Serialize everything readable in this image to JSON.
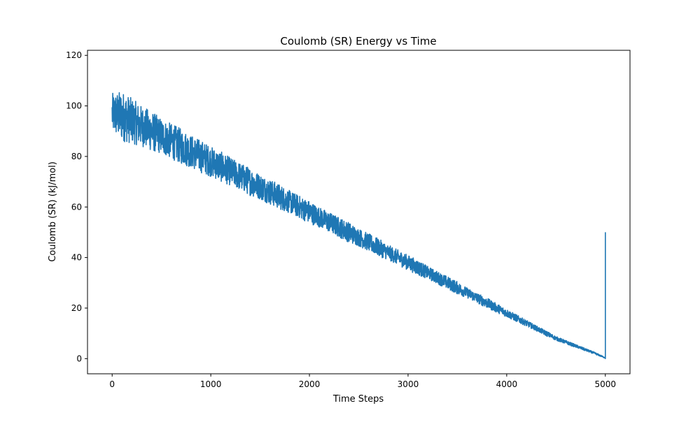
{
  "chart_data": {
    "type": "line",
    "title": "Coulomb (SR) Energy vs Time",
    "xlabel": "Time Steps",
    "ylabel": "Coulomb (SR) (kJ/mol)",
    "xlim": [
      -250,
      5250
    ],
    "ylim": [
      -6,
      122
    ],
    "xticks": [
      0,
      1000,
      2000,
      3000,
      4000,
      5000
    ],
    "yticks": [
      0,
      20,
      40,
      60,
      80,
      100,
      120
    ],
    "grid": false,
    "line_color": "#1f77b4",
    "series": [
      {
        "note": "noisy linear decay; envelope per x",
        "x": [
          0,
          100,
          200,
          300,
          400,
          500,
          600,
          700,
          800,
          900,
          1000,
          1100,
          1200,
          1300,
          1400,
          1500,
          1600,
          1700,
          1800,
          1900,
          2000,
          2100,
          2200,
          2300,
          2400,
          2500,
          2600,
          2700,
          2800,
          2900,
          3000,
          3100,
          3200,
          3300,
          3400,
          3500,
          3600,
          3700,
          3800,
          3900,
          4000,
          4100,
          4200,
          4300,
          4400,
          4500,
          4600,
          4700,
          4800,
          4900,
          5000
        ],
        "center": [
          97,
          96,
          94,
          92,
          90,
          88,
          86,
          84,
          82,
          80,
          78,
          76,
          74,
          72,
          70,
          68,
          66,
          64,
          62,
          60,
          58,
          56,
          54,
          52,
          50,
          48,
          46,
          44,
          42,
          40,
          38,
          36,
          34,
          32,
          30,
          28,
          26,
          24,
          22,
          20,
          18,
          16,
          14,
          12,
          10,
          8,
          6.5,
          5,
          3.5,
          2,
          0.3
        ],
        "noise": [
          8,
          10,
          9,
          8,
          8,
          7,
          7,
          7,
          6.5,
          6.5,
          6,
          6,
          5.5,
          5.5,
          5.5,
          5,
          5,
          5,
          4.5,
          4.5,
          4.5,
          4,
          4,
          4,
          4,
          3.5,
          3.5,
          3.5,
          3,
          3,
          3,
          3,
          2.5,
          2.5,
          2.5,
          2.5,
          2,
          2,
          2,
          1.8,
          1.6,
          1.4,
          1.2,
          1,
          1,
          0.8,
          0.7,
          0.6,
          0.5,
          0.4,
          0.2
        ],
        "final_spike": [
          5000,
          50
        ]
      }
    ]
  }
}
